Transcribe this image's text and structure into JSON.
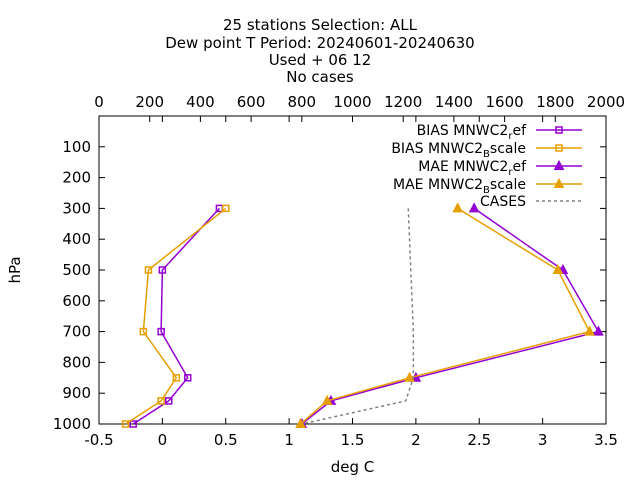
{
  "chart_data": {
    "type": "line",
    "title_lines": [
      "25 stations Selection: ALL",
      "Dew point T  Period: 20240601-20240630",
      "Used  + 06 12",
      "No cases"
    ],
    "xlabel": "deg C",
    "ylabel": "hPa",
    "xlim": [
      -0.5,
      3.5
    ],
    "x_ticks": [
      "-0.5",
      "0",
      "0.5",
      "1",
      "1.5",
      "2",
      "2.5",
      "3",
      "3.5"
    ],
    "x_tick_values": [
      -0.5,
      0,
      0.5,
      1,
      1.5,
      2,
      2.5,
      3,
      3.5
    ],
    "x2lim": [
      0,
      2000
    ],
    "x2_ticks": [
      "0",
      "200",
      "400",
      "600",
      "800",
      "1000",
      "1200",
      "1400",
      "1600",
      "1800",
      "2000"
    ],
    "x2_tick_values": [
      0,
      200,
      400,
      600,
      800,
      1000,
      1200,
      1400,
      1600,
      1800,
      2000
    ],
    "ylim": [
      1000,
      0
    ],
    "y_ticks": [
      "100",
      "200",
      "300",
      "400",
      "500",
      "600",
      "700",
      "800",
      "900",
      "1000"
    ],
    "y_tick_values": [
      100,
      200,
      300,
      400,
      500,
      600,
      700,
      800,
      900,
      1000
    ],
    "series": [
      {
        "name_base": "BIAS MNWC2",
        "name_sub": "r",
        "name_tail": "ef",
        "color": "#9400d3",
        "marker": "square",
        "axis": "x",
        "points": [
          [
            0.45,
            300
          ],
          [
            0.0,
            500
          ],
          [
            -0.01,
            700
          ],
          [
            0.2,
            850
          ],
          [
            0.05,
            925
          ],
          [
            -0.23,
            1000
          ]
        ]
      },
      {
        "name_base": "BIAS MNWC2",
        "name_sub": "B",
        "name_tail": "scale",
        "color": "#e69f00",
        "marker": "square",
        "axis": "x",
        "points": [
          [
            0.5,
            300
          ],
          [
            -0.11,
            500
          ],
          [
            -0.15,
            700
          ],
          [
            0.11,
            850
          ],
          [
            -0.01,
            925
          ],
          [
            -0.29,
            1000
          ]
        ]
      },
      {
        "name_base": "MAE MNWC2",
        "name_sub": "r",
        "name_tail": "ef",
        "color": "#9400d3",
        "marker": "triangle",
        "axis": "x",
        "points": [
          [
            2.46,
            300
          ],
          [
            3.16,
            500
          ],
          [
            3.44,
            700
          ],
          [
            2.0,
            850
          ],
          [
            1.33,
            925
          ],
          [
            1.1,
            1000
          ]
        ]
      },
      {
        "name_base": "MAE MNWC2",
        "name_sub": "B",
        "name_tail": "scale",
        "color": "#e69f00",
        "marker": "triangle",
        "axis": "x",
        "points": [
          [
            2.33,
            300
          ],
          [
            3.12,
            500
          ],
          [
            3.37,
            700
          ],
          [
            1.95,
            850
          ],
          [
            1.3,
            925
          ],
          [
            1.09,
            1000
          ]
        ]
      },
      {
        "name_base": "CASES",
        "name_sub": "",
        "name_tail": "",
        "color": "#808080",
        "marker": "none",
        "dashed": true,
        "axis": "x2",
        "points": [
          [
            1220,
            300
          ],
          [
            1230,
            500
          ],
          [
            1240,
            700
          ],
          [
            1240,
            850
          ],
          [
            1210,
            925
          ],
          [
            800,
            1000
          ]
        ]
      }
    ],
    "legend_position": "top-right",
    "grid": false
  }
}
